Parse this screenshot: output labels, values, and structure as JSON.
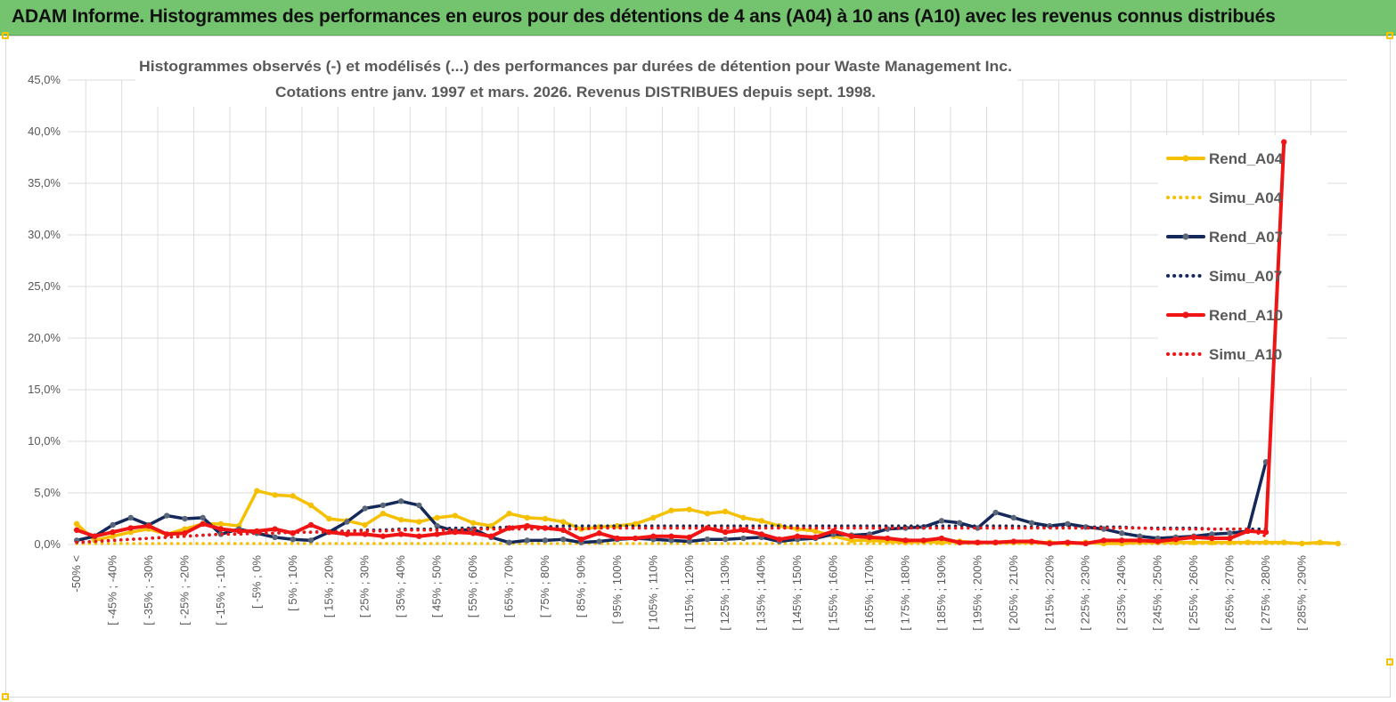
{
  "banner": {
    "title": "ADAM Informe. Histogrammes des performances en euros pour des détentions de 4 ans (A04) à 10 ans (A10) avec les revenus connus distribués"
  },
  "chart_data": {
    "type": "line",
    "title": "Histogrammes observés (-) et modélisés (...) des performances par durées de détention pour Waste Management Inc.",
    "subtitle": "Cotations entre janv. 1997 et mars. 2026. Revenus DISTRIBUES depuis sept. 1998.",
    "xlabel": "",
    "ylabel": "",
    "ylim": [
      0,
      45
    ],
    "yticks": [
      "0,0%",
      "5,0%",
      "10,0%",
      "15,0%",
      "20,0%",
      "25,0%",
      "30,0%",
      "35,0%",
      "40,0%",
      "45,0%"
    ],
    "grid": true,
    "legend_position": "right",
    "x_tick_labels": [
      "-50% <",
      "[ -45% ; -40%",
      "[ -35% ; -30%",
      "[ -25% ; -20%",
      "[ -15% ; -10%",
      "[ -5% ; 0%",
      "[ 5% ; 10%",
      "[ 15% ; 20%",
      "[ 25% ; 30%",
      "[ 35% ; 40%",
      "[ 45% ; 50%",
      "[ 55% ; 60%",
      "[ 65% ; 70%",
      "[ 75% ; 80%",
      "[ 85% ; 90%",
      "[ 95% ; 100%",
      "[ 105% ; 110%",
      "[ 115% ; 120%",
      "[ 125% ; 130%",
      "[ 135% ; 140%",
      "[ 145% ; 150%",
      "[ 155% ; 160%",
      "[ 165% ; 170%",
      "[ 175% ; 180%",
      "[ 185% ; 190%",
      "[ 195% ; 200%",
      "[ 205% ; 210%",
      "[ 215% ; 220%",
      "[ 225% ; 230%",
      "[ 235% ; 240%",
      "[ 245% ; 250%",
      "[ 255% ; 260%",
      "[ 265% ; 270%",
      "[ 275% ; 280%",
      "[ 285% ; 290%"
    ],
    "series": [
      {
        "name": "Rend_A04",
        "color": "#f5c000",
        "style": "solid",
        "markers": true,
        "values": [
          2.0,
          0.4,
          0.8,
          1.2,
          1.5,
          1.0,
          1.5,
          2.0,
          2.0,
          1.8,
          5.2,
          4.8,
          4.7,
          3.8,
          2.5,
          2.3,
          1.9,
          3.0,
          2.4,
          2.2,
          2.6,
          2.8,
          2.1,
          1.8,
          3.0,
          2.6,
          2.5,
          2.2,
          1.5,
          1.7,
          1.8,
          2.0,
          2.6,
          3.3,
          3.4,
          3.0,
          3.2,
          2.6,
          2.3,
          1.8,
          1.5,
          1.3,
          0.8,
          0.4,
          0.4,
          0.3,
          0.2,
          0.3,
          0.2,
          0.3,
          0.2,
          0.2,
          0.2,
          0.2,
          0.2,
          0.1,
          0.2,
          0.1,
          0.1,
          0.2,
          0.2,
          0.2,
          0.2,
          0.2,
          0.2,
          0.2,
          0.2,
          0.2,
          0.1,
          0.2,
          0.1
        ]
      },
      {
        "name": "Simu_A04",
        "color": "#f5c000",
        "style": "dotted",
        "markers": false,
        "values": [
          0.1,
          0.1,
          0.1,
          0.1,
          0.1,
          0.1,
          0.1,
          0.1,
          0.1,
          0.1,
          0.1,
          0.1,
          0.1,
          0.1,
          0.1,
          0.1,
          0.1,
          0.1,
          0.1,
          0.1,
          0.1,
          0.1,
          0.1,
          0.1,
          0.1,
          0.1,
          0.1,
          0.1,
          0.1,
          0.1,
          0.1,
          0.1,
          0.1,
          0.1,
          0.1,
          0.1,
          0.1,
          0.1,
          0.1,
          0.1,
          0.1,
          0.1,
          0.1,
          0.1,
          0.1,
          0.1,
          0.1,
          0.1,
          0.1,
          0.1,
          0.1,
          0.1,
          0.1,
          0.1,
          0.1,
          0.1,
          0.1,
          0.1,
          0.1,
          0.1,
          0.1,
          0.1,
          0.1,
          0.1,
          0.1,
          0.1,
          0.1,
          0.1,
          0.1,
          0.1,
          0.1
        ]
      },
      {
        "name": "Rend_A07",
        "color": "#14285a",
        "style": "solid",
        "markers": true,
        "values": [
          0.4,
          0.8,
          1.9,
          2.6,
          1.9,
          2.8,
          2.5,
          2.6,
          1.0,
          1.5,
          1.1,
          0.7,
          0.5,
          0.4,
          1.2,
          2.2,
          3.5,
          3.8,
          4.2,
          3.8,
          1.8,
          1.3,
          1.5,
          0.7,
          0.2,
          0.4,
          0.4,
          0.5,
          0.2,
          0.3,
          0.5,
          0.6,
          0.5,
          0.4,
          0.3,
          0.5,
          0.5,
          0.6,
          0.7,
          0.3,
          0.5,
          0.6,
          1.0,
          0.9,
          1.0,
          1.5,
          1.6,
          1.7,
          2.3,
          2.1,
          1.6,
          3.1,
          2.6,
          2.1,
          1.8,
          2.0,
          1.7,
          1.5,
          1.1,
          0.8,
          0.6,
          0.7,
          0.8,
          1.0,
          1.1,
          1.3,
          8.0
        ]
      },
      {
        "name": "Simu_A07",
        "color": "#14285a",
        "style": "dotted",
        "markers": false,
        "values": [
          0.2,
          0.3,
          0.4,
          0.5,
          0.6,
          0.7,
          0.8,
          0.9,
          1.0,
          1.0,
          1.1,
          1.1,
          1.2,
          1.2,
          1.3,
          1.3,
          1.4,
          1.4,
          1.5,
          1.5,
          1.5,
          1.6,
          1.6,
          1.6,
          1.7,
          1.7,
          1.7,
          1.8,
          1.8,
          1.8,
          1.8,
          1.8,
          1.8,
          1.8,
          1.8,
          1.8,
          1.8,
          1.8,
          1.8,
          1.8,
          1.8,
          1.8,
          1.8,
          1.8,
          1.8,
          1.8,
          1.8,
          1.8,
          1.8,
          1.8,
          1.8,
          1.8,
          1.8,
          1.7,
          1.7,
          1.7,
          1.7,
          1.7,
          1.7,
          1.6,
          1.6,
          1.6,
          1.6,
          1.5,
          1.5,
          1.5,
          1.5
        ]
      },
      {
        "name": "Rend_A10",
        "color": "#f01414",
        "style": "solid",
        "markers": true,
        "values": [
          1.4,
          0.8,
          1.2,
          1.6,
          1.8,
          1.0,
          1.1,
          2.0,
          1.5,
          1.3,
          1.3,
          1.5,
          1.1,
          1.9,
          1.2,
          1.0,
          1.0,
          0.8,
          1.0,
          0.8,
          1.0,
          1.2,
          1.1,
          0.8,
          1.6,
          1.8,
          1.6,
          1.4,
          0.5,
          1.1,
          0.6,
          0.6,
          0.8,
          0.8,
          0.7,
          1.6,
          1.2,
          1.4,
          1.0,
          0.5,
          0.8,
          0.7,
          1.3,
          0.8,
          0.7,
          0.6,
          0.4,
          0.4,
          0.6,
          0.2,
          0.2,
          0.2,
          0.3,
          0.3,
          0.1,
          0.2,
          0.1,
          0.4,
          0.4,
          0.4,
          0.3,
          0.5,
          0.7,
          0.6,
          0.6,
          1.3,
          1.2,
          39.0
        ]
      },
      {
        "name": "Simu_A10",
        "color": "#f01414",
        "style": "dotted",
        "markers": false,
        "values": [
          0.2,
          0.3,
          0.4,
          0.5,
          0.6,
          0.7,
          0.8,
          0.9,
          1.0,
          1.0,
          1.1,
          1.1,
          1.2,
          1.2,
          1.2,
          1.3,
          1.3,
          1.3,
          1.4,
          1.4,
          1.4,
          1.4,
          1.5,
          1.5,
          1.5,
          1.5,
          1.5,
          1.5,
          1.5,
          1.6,
          1.6,
          1.6,
          1.6,
          1.6,
          1.6,
          1.6,
          1.6,
          1.6,
          1.6,
          1.6,
          1.6,
          1.6,
          1.6,
          1.6,
          1.6,
          1.6,
          1.6,
          1.6,
          1.6,
          1.6,
          1.6,
          1.6,
          1.6,
          1.6,
          1.6,
          1.6,
          1.6,
          1.6,
          1.6,
          1.6,
          1.5,
          1.5,
          1.5,
          1.5,
          1.5,
          1.5,
          0.8
        ]
      }
    ]
  }
}
